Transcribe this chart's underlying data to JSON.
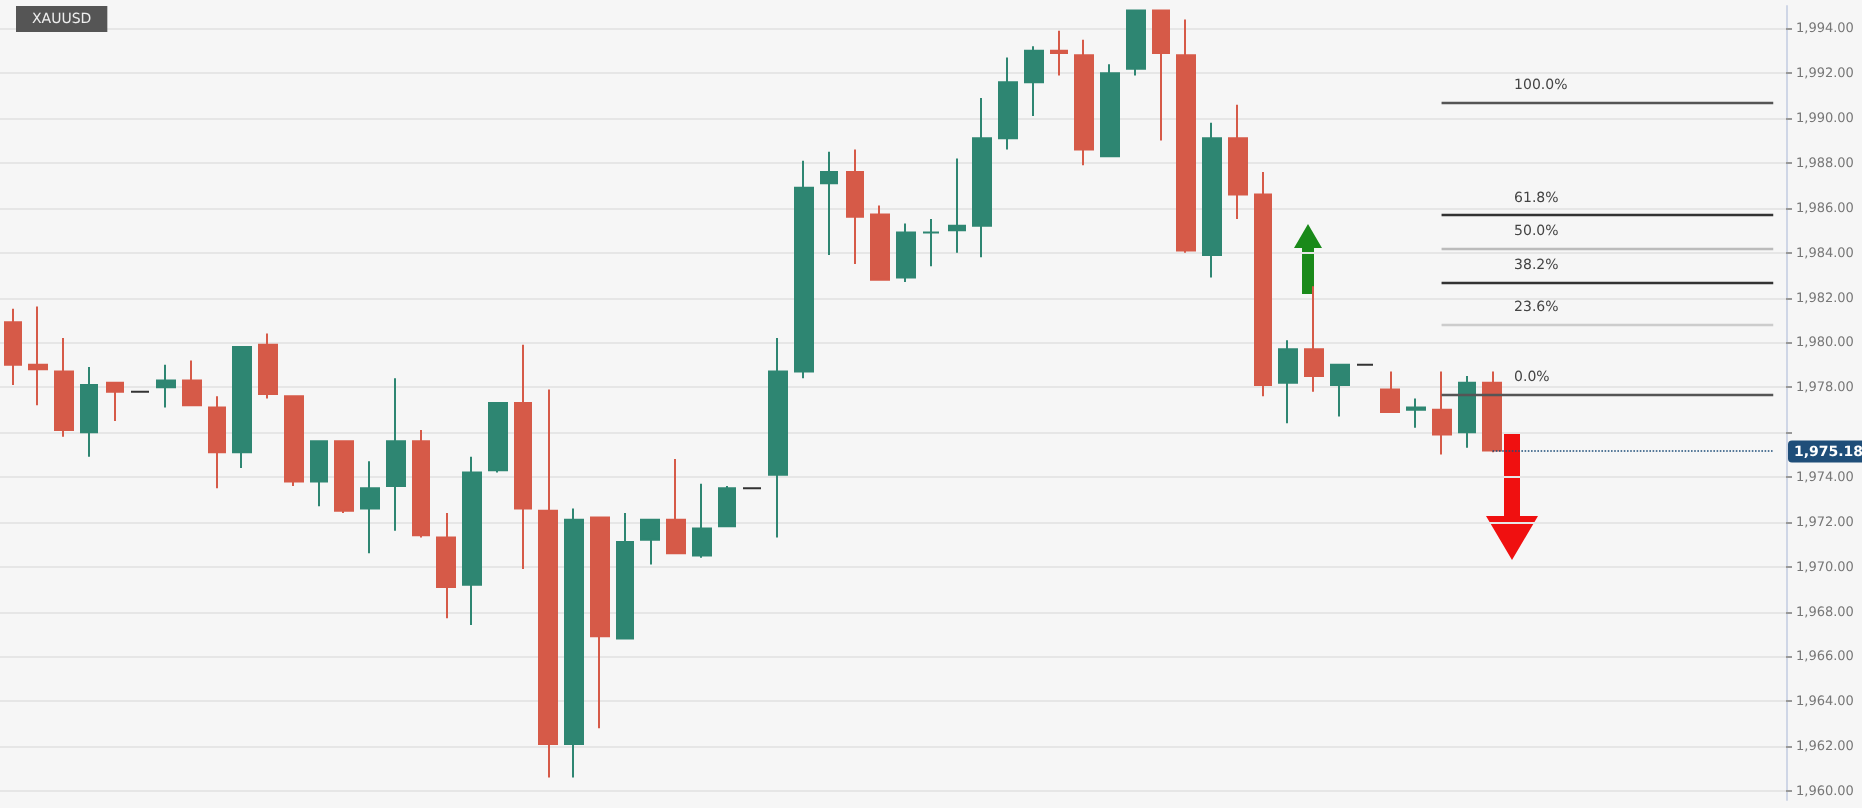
{
  "chart_data": {
    "type": "candlestick",
    "title": "XAUUSD",
    "categories": [
      null,
      null,
      null,
      null,
      null,
      null,
      null,
      null,
      null,
      null,
      null,
      null,
      null,
      null,
      null,
      null,
      null,
      null,
      null,
      null,
      null,
      null,
      null,
      null,
      null,
      null,
      null,
      null,
      null,
      null,
      null,
      null,
      null,
      null,
      null,
      null,
      null,
      null,
      null,
      null,
      null,
      null,
      null,
      null,
      null,
      null,
      null,
      null,
      null,
      null,
      null,
      null,
      null,
      null,
      null,
      null,
      null,
      null,
      null,
      null,
      null,
      null,
      null,
      null,
      null,
      null,
      null,
      null,
      null,
      null
    ],
    "ohlc": [
      [
        1980.9,
        1981.5,
        1978.1,
        1979.0
      ],
      [
        1979.0,
        1981.6,
        1977.2,
        1978.8
      ],
      [
        1978.7,
        1980.2,
        1975.8,
        1976.1
      ],
      [
        1976.0,
        1978.9,
        1974.9,
        1978.1
      ],
      [
        1978.2,
        1978.2,
        1976.5,
        1977.8
      ],
      [
        1977.8,
        1977.8,
        1977.8,
        1977.8
      ],
      [
        1978.0,
        1979.0,
        1977.1,
        1978.3
      ],
      [
        1978.3,
        1979.2,
        1977.2,
        1977.2
      ],
      [
        1977.1,
        1977.6,
        1973.5,
        1975.1
      ],
      [
        1975.1,
        1979.8,
        1974.4,
        1979.8
      ],
      [
        1979.9,
        1980.4,
        1977.5,
        1977.7
      ],
      [
        1977.6,
        1977.6,
        1973.6,
        1973.8
      ],
      [
        1973.8,
        1975.6,
        1972.7,
        1975.6
      ],
      [
        1975.6,
        1975.6,
        1972.4,
        1972.5
      ],
      [
        1972.6,
        1974.7,
        1970.6,
        1973.5
      ],
      [
        1973.6,
        1978.4,
        1971.6,
        1975.6
      ],
      [
        1975.6,
        1976.1,
        1971.3,
        1971.4
      ],
      [
        1971.3,
        1972.4,
        1967.7,
        1969.1
      ],
      [
        1969.2,
        1974.9,
        1967.4,
        1974.2
      ],
      [
        1974.3,
        1977.3,
        1974.2,
        1977.3
      ],
      [
        1977.3,
        1979.9,
        1969.9,
        1972.6
      ],
      [
        1972.5,
        1977.9,
        1960.6,
        1962.1
      ],
      [
        1962.1,
        1972.6,
        1960.6,
        1972.1
      ],
      [
        1972.2,
        1972.2,
        1962.8,
        1966.9
      ],
      [
        1966.8,
        1972.4,
        1966.8,
        1971.1
      ],
      [
        1971.2,
        1972.1,
        1970.1,
        1972.1
      ],
      [
        1972.1,
        1974.8,
        1970.6,
        1970.6
      ],
      [
        1970.5,
        1973.7,
        1970.4,
        1971.7
      ],
      [
        1971.8,
        1973.6,
        1971.8,
        1973.5
      ],
      [
        1973.5,
        1973.5,
        1973.5,
        1973.5
      ],
      [
        1974.1,
        1980.2,
        1971.3,
        1978.7
      ],
      [
        1978.7,
        1988.1,
        1978.4,
        1986.9
      ],
      [
        1987.1,
        1988.5,
        1983.9,
        1987.6
      ],
      [
        1987.6,
        1988.6,
        1983.5,
        1985.6
      ],
      [
        1985.7,
        1986.1,
        1982.8,
        1982.8
      ],
      [
        1982.9,
        1985.3,
        1982.7,
        1984.9
      ],
      [
        1984.9,
        1985.5,
        1983.4,
        1984.9
      ],
      [
        1985.0,
        1988.2,
        1984.0,
        1985.2
      ],
      [
        1985.2,
        1990.9,
        1983.8,
        1989.1
      ],
      [
        1989.1,
        1992.7,
        1988.6,
        1991.6
      ],
      [
        1991.6,
        1993.2,
        1990.1,
        1993.0
      ],
      [
        1993.0,
        1993.9,
        1991.9,
        1992.9
      ],
      [
        1992.8,
        1993.5,
        1987.9,
        1988.6
      ],
      [
        1988.3,
        1992.4,
        1988.3,
        1992.0
      ],
      [
        1992.2,
        1994.8,
        1991.9,
        1994.8
      ],
      [
        1994.8,
        1994.8,
        1989.0,
        1992.9
      ],
      [
        1992.8,
        1994.4,
        1984.0,
        1984.1
      ],
      [
        1983.9,
        1989.8,
        1982.9,
        1989.1
      ],
      [
        1989.1,
        1990.6,
        1985.5,
        1986.6
      ],
      [
        1986.6,
        1987.6,
        1977.6,
        1978.1
      ],
      [
        1978.2,
        1980.1,
        1976.4,
        1979.7
      ],
      [
        1979.7,
        1982.5,
        1977.8,
        1978.5
      ],
      [
        1978.1,
        1979.0,
        1976.7,
        1979.0
      ],
      [
        1979.0,
        1979.0,
        1979.0,
        1979.0
      ],
      [
        1977.9,
        1978.7,
        1976.9,
        1976.9
      ],
      [
        1977.0,
        1977.5,
        1976.2,
        1977.1
      ],
      [
        1977.0,
        1978.7,
        1975.0,
        1975.9
      ],
      [
        1976.0,
        1978.5,
        1975.3,
        1978.2
      ],
      [
        1978.2,
        1978.7,
        1975.1,
        1975.18
      ],
      null,
      null,
      null,
      null,
      null,
      null,
      null,
      null,
      null,
      null,
      null
    ],
    "colors": [
      "#d65a48",
      "#d65a48",
      "#d65a48",
      "#2e8672",
      "#d65a48",
      "#333333",
      "#2e8672",
      "#d65a48",
      "#d65a48",
      "#2e8672",
      "#d65a48",
      "#d65a48",
      "#2e8672",
      "#d65a48",
      "#2e8672",
      "#2e8672",
      "#d65a48",
      "#d65a48",
      "#2e8672",
      "#2e8672",
      "#d65a48",
      "#d65a48",
      "#2e8672",
      "#d65a48",
      "#2e8672",
      "#2e8672",
      "#d65a48",
      "#2e8672",
      "#2e8672",
      "#333333",
      "#2e8672",
      "#2e8672",
      "#2e8672",
      "#d65a48",
      "#d65a48",
      "#2e8672",
      "#2e8672",
      "#2e8672",
      "#2e8672",
      "#2e8672",
      "#2e8672",
      "#d65a48",
      "#d65a48",
      "#2e8672",
      "#2e8672",
      "#d65a48",
      "#d65a48",
      "#2e8672",
      "#d65a48",
      "#d65a48",
      "#2e8672",
      "#d65a48",
      "#2e8672",
      "#333333",
      "#d65a48",
      "#2e8672",
      "#d65a48",
      "#2e8672",
      "#d65a48",
      null,
      null,
      null,
      null,
      null,
      null,
      null,
      null,
      null,
      null,
      null
    ],
    "ylim": [
      1959.6,
      1995
    ],
    "yticks": [
      {
        "value": 1960,
        "label": "1,960.00"
      },
      {
        "value": 1962,
        "label": "1,962.00"
      },
      {
        "value": 1964,
        "label": "1,964.00"
      },
      {
        "value": 1966,
        "label": "1,966.00"
      },
      {
        "value": 1968,
        "label": "1,968.00"
      },
      {
        "value": 1970,
        "label": "1,970.00"
      },
      {
        "value": 1972,
        "label": "1,972.00"
      },
      {
        "value": 1974,
        "label": "1,974.00"
      },
      {
        "value": 1976,
        "label": null
      },
      {
        "value": 1978,
        "label": "1,978.00"
      },
      {
        "value": 1980,
        "label": "1,980.00"
      },
      {
        "value": 1982,
        "label": "1,982.00"
      },
      {
        "value": 1984,
        "label": "1,984.00"
      },
      {
        "value": 1986,
        "label": "1,986.00"
      },
      {
        "value": 1988,
        "label": "1,988.00"
      },
      {
        "value": 1990,
        "label": "1,990.00"
      },
      {
        "value": 1992,
        "label": "1,992.00"
      },
      {
        "value": 1994,
        "label": "1,994.00"
      }
    ],
    "grid": "y",
    "ref_lines": [
      {
        "axis": "y",
        "value": 1990.7,
        "color": "#555555"
      },
      {
        "axis": "y",
        "value": 1985.7,
        "color": "#333333"
      },
      {
        "axis": "y",
        "value": 1984.2,
        "color": "#bbbbbb"
      },
      {
        "axis": "y",
        "value": 1982.7,
        "color": "#333333"
      },
      {
        "axis": "y",
        "value": 1980.8,
        "color": "#cccccc"
      },
      {
        "axis": "y",
        "value": 1977.7,
        "color": "#555555"
      },
      {
        "axis": "y",
        "value": 1975.18,
        "label": "1,975.18",
        "color": "#1f4e79",
        "line_style": "dotted"
      }
    ],
    "annotations": [
      {
        "text": "100.0%",
        "y": 1990.7
      },
      {
        "text": "61.8%",
        "y": 1985.7
      },
      {
        "text": "50.0%",
        "y": 1984.2
      },
      {
        "text": "38.2%",
        "y": 1982.7
      },
      {
        "text": "23.6%",
        "y": 1980.8
      },
      {
        "text": "0.0%",
        "y": 1977.7
      }
    ]
  }
}
